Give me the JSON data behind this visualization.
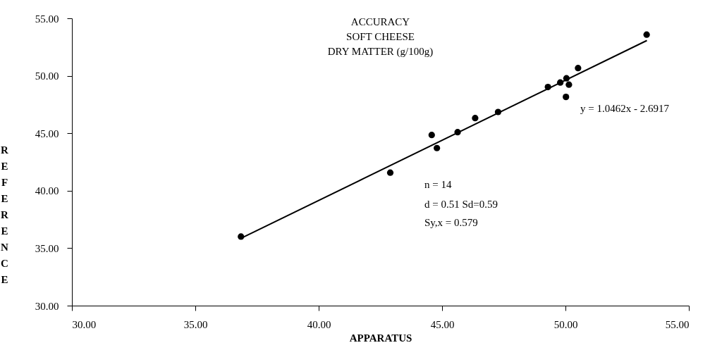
{
  "chart_data": {
    "type": "scatter",
    "title": "ACCURACY\nSOFT CHEESE\nDRY MATTER (g/100g)",
    "xlabel": "APPARATUS",
    "ylabel": "REFERENCE",
    "series": [
      {
        "type": "scatter",
        "color": "#000000",
        "marker": "circle",
        "x": [
          36.85,
          42.9,
          44.58,
          44.79,
          45.63,
          46.34,
          47.27,
          49.29,
          49.79,
          50.02,
          50.04,
          50.14,
          50.51,
          53.29
        ],
        "values": [
          36.01,
          41.57,
          44.85,
          43.71,
          45.09,
          46.32,
          46.85,
          49.02,
          49.41,
          48.16,
          49.78,
          49.23,
          50.67,
          53.58
        ]
      },
      {
        "type": "line",
        "color": "#000000",
        "line_style": "solid",
        "x": [
          36.85,
          53.3
        ],
        "values": [
          35.86,
          53.07
        ]
      }
    ],
    "xlim": [
      30,
      55
    ],
    "ylim": [
      30,
      55
    ],
    "xticks": [
      {
        "value": 30,
        "label": "30.00"
      },
      {
        "value": 35,
        "label": "35.00"
      },
      {
        "value": 40,
        "label": "40.00"
      },
      {
        "value": 45,
        "label": "45.00"
      },
      {
        "value": 50,
        "label": "50.00"
      },
      {
        "value": 55,
        "label": "55.00"
      }
    ],
    "yticks": [
      {
        "value": 30,
        "label": "30.00"
      },
      {
        "value": 35,
        "label": "35.00"
      },
      {
        "value": 40,
        "label": "40.00"
      },
      {
        "value": 45,
        "label": "45.00"
      },
      {
        "value": 50,
        "label": "50.00"
      },
      {
        "value": 55,
        "label": "55.00"
      }
    ],
    "annotations": [
      "y = 1.0462x - 2.6917",
      "n = 14",
      "d = 0.51  Sd=0.59",
      "Sy,x = 0.579"
    ],
    "grid": false
  }
}
